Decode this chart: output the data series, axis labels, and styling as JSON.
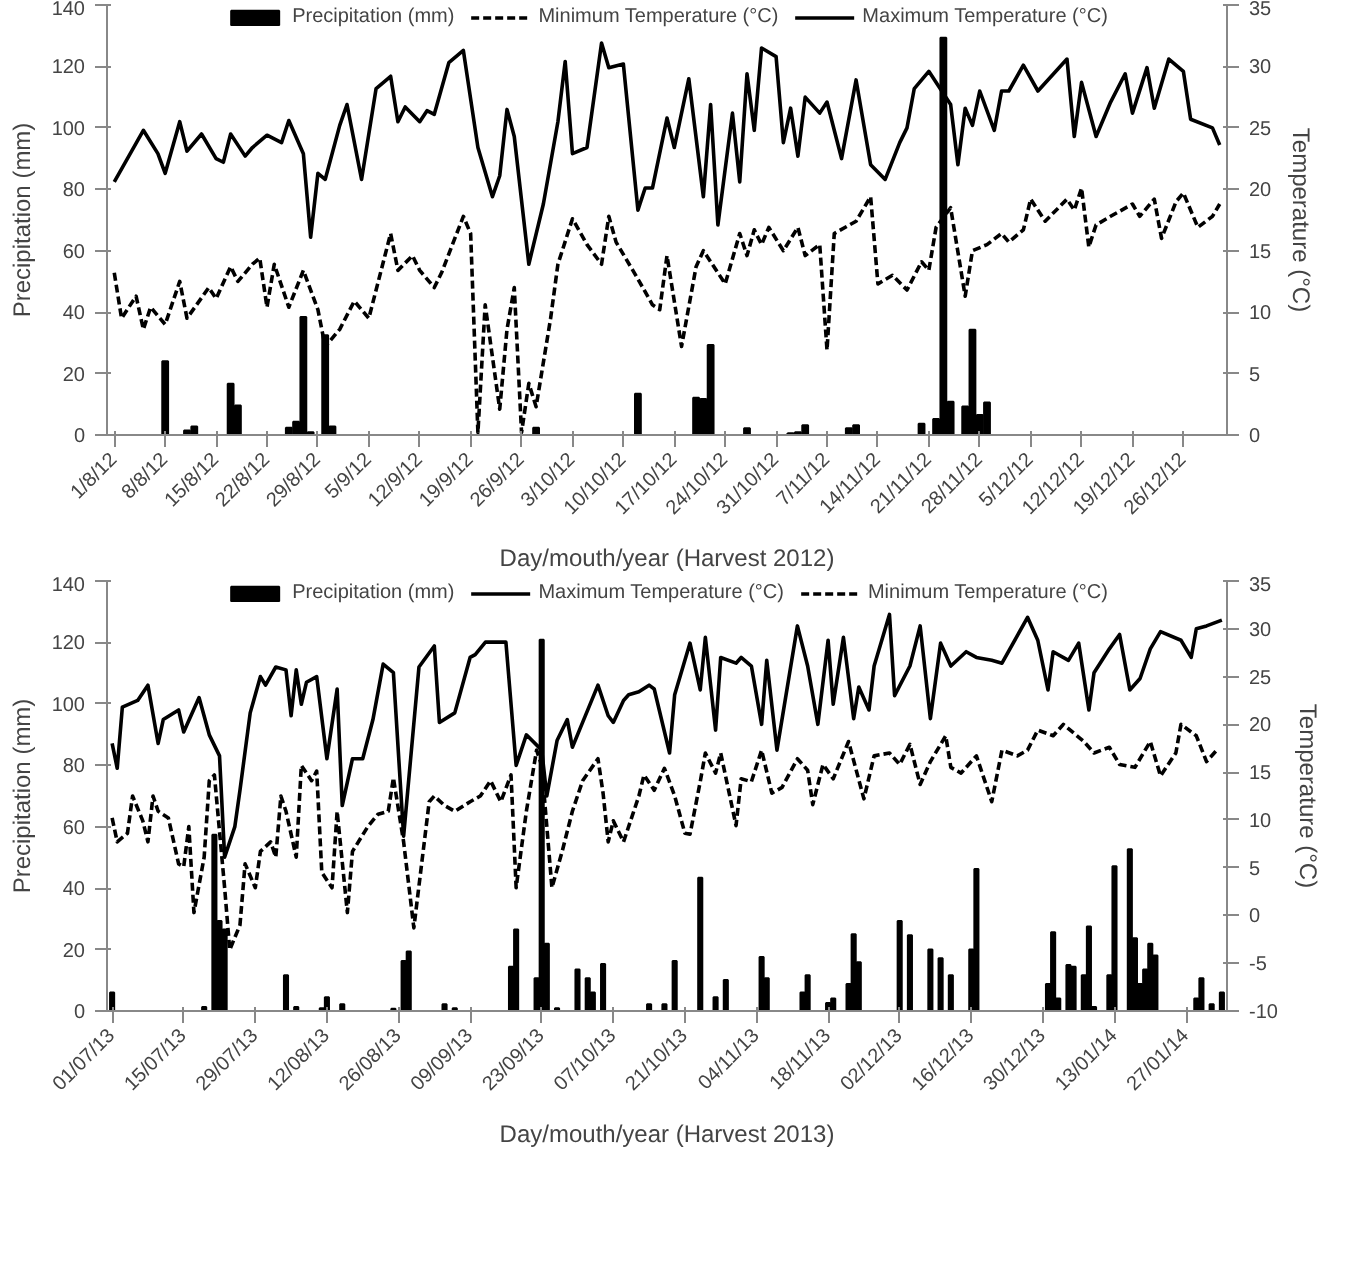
{
  "chart_data": [
    {
      "type": "line",
      "xlabel": "Day/mouth/year (Harvest 2012)",
      "ylabel": "Precipitation (mm)",
      "y2label": "Temperature (°C)",
      "legend": "top",
      "grid": false,
      "xlim": [
        "2012-07-31",
        "2013-01-01"
      ],
      "ylim": [
        0,
        140
      ],
      "yticks": [
        0,
        20,
        40,
        60,
        80,
        100,
        120,
        140
      ],
      "y2lim": [
        0,
        35
      ],
      "y2ticks": [
        0,
        5,
        10,
        15,
        20,
        25,
        30,
        35
      ],
      "xticks": [
        {
          "value": "2012-08-01",
          "label": "1/8/12"
        },
        {
          "value": "2012-08-08",
          "label": "8/8/12"
        },
        {
          "value": "2012-08-15",
          "label": "15/8/12"
        },
        {
          "value": "2012-08-22",
          "label": "22/8/12"
        },
        {
          "value": "2012-08-29",
          "label": "29/8/12"
        },
        {
          "value": "2012-09-05",
          "label": "5/9/12"
        },
        {
          "value": "2012-09-12",
          "label": "12/9/12"
        },
        {
          "value": "2012-09-19",
          "label": "19/9/12"
        },
        {
          "value": "2012-09-26",
          "label": "26/9/12"
        },
        {
          "value": "2012-10-03",
          "label": "3/10/12"
        },
        {
          "value": "2012-10-10",
          "label": "10/10/12"
        },
        {
          "value": "2012-10-17",
          "label": "17/10/12"
        },
        {
          "value": "2012-10-24",
          "label": "24/10/12"
        },
        {
          "value": "2012-10-31",
          "label": "31/10/12"
        },
        {
          "value": "2012-11-07",
          "label": "7/11/12"
        },
        {
          "value": "2012-11-14",
          "label": "14/11/12"
        },
        {
          "value": "2012-11-21",
          "label": "21/11/12"
        },
        {
          "value": "2012-11-28",
          "label": "28/11/12"
        },
        {
          "value": "2012-12-05",
          "label": "5/12/12"
        },
        {
          "value": "2012-12-12",
          "label": "12/12/12"
        },
        {
          "value": "2012-12-19",
          "label": "19/12/12"
        },
        {
          "value": "2012-12-26",
          "label": "26/12/12"
        }
      ],
      "series": [
        {
          "name": "Precipitation (mm)",
          "type": "bar",
          "color": "#000000",
          "x": [
            "2012-08-08",
            "2012-08-11",
            "2012-08-12",
            "2012-08-17",
            "2012-08-18",
            "2012-08-25",
            "2012-08-26",
            "2012-08-27",
            "2012-08-28",
            "2012-08-30",
            "2012-08-31",
            "2012-09-28",
            "2012-10-12",
            "2012-10-20",
            "2012-10-21",
            "2012-10-22",
            "2012-10-27",
            "2012-11-02",
            "2012-11-03",
            "2012-11-04",
            "2012-11-10",
            "2012-11-11",
            "2012-11-20",
            "2012-11-22",
            "2012-11-23",
            "2012-11-24",
            "2012-11-26",
            "2012-11-27",
            "2012-11-28",
            "2012-11-29"
          ],
          "values": [
            24,
            1.5,
            2.8,
            16.7,
            9.6,
            2.4,
            4.3,
            38.4,
            0.9,
            32.5,
            2.8,
            2.4,
            13.4,
            12.1,
            11.7,
            29.3,
            2.2,
            0.6,
            0.9,
            3.2,
            2.2,
            3.2,
            3.7,
            5.2,
            129.3,
            10.8,
            9.3,
            34.3,
            6.5,
            10.6
          ]
        },
        {
          "name": "Minimum Temperature (°C)",
          "axis": "y2",
          "line_style": "dashed",
          "color": "#000000",
          "x": [
            "2012-08-01",
            "2012-08-02",
            "2012-08-04",
            "2012-08-05",
            "2012-08-06",
            "2012-08-08",
            "2012-08-10",
            "2012-08-11",
            "2012-08-14",
            "2012-08-15",
            "2012-08-17",
            "2012-08-18",
            "2012-08-20",
            "2012-08-21",
            "2012-08-22",
            "2012-08-23",
            "2012-08-25",
            "2012-08-27",
            "2012-08-29",
            "2012-08-30",
            "2012-09-01",
            "2012-09-03",
            "2012-09-05",
            "2012-09-08",
            "2012-09-09",
            "2012-09-11",
            "2012-09-12",
            "2012-09-14",
            "2012-09-15",
            "2012-09-18",
            "2012-09-19",
            "2012-09-20",
            "2012-09-21",
            "2012-09-23",
            "2012-09-24",
            "2012-09-25",
            "2012-09-26",
            "2012-09-27",
            "2012-09-28",
            "2012-09-30",
            "2012-10-01",
            "2012-10-03",
            "2012-10-05",
            "2012-10-07",
            "2012-10-08",
            "2012-10-09",
            "2012-10-12",
            "2012-10-14",
            "2012-10-15",
            "2012-10-16",
            "2012-10-18",
            "2012-10-20",
            "2012-10-21",
            "2012-10-23",
            "2012-10-24",
            "2012-10-26",
            "2012-10-27",
            "2012-10-28",
            "2012-10-29",
            "2012-10-30",
            "2012-11-01",
            "2012-11-03",
            "2012-11-04",
            "2012-11-06",
            "2012-11-07",
            "2012-11-08",
            "2012-11-11",
            "2012-11-13",
            "2012-11-14",
            "2012-11-16",
            "2012-11-18",
            "2012-11-20",
            "2012-11-21",
            "2012-11-22",
            "2012-11-24",
            "2012-11-26",
            "2012-11-27",
            "2012-11-29",
            "2012-12-01",
            "2012-12-02",
            "2012-12-04",
            "2012-12-05",
            "2012-12-07",
            "2012-12-10",
            "2012-12-11",
            "2012-12-12",
            "2012-12-13",
            "2012-12-14",
            "2012-12-16",
            "2012-12-19",
            "2012-12-20",
            "2012-12-22",
            "2012-12-23",
            "2012-12-25",
            "2012-12-26",
            "2012-12-28",
            "2012-12-30",
            "2012-12-31"
          ],
          "values": [
            13.2,
            9.5,
            11.3,
            8.6,
            10.4,
            9.0,
            12.5,
            9.5,
            12.0,
            11.1,
            13.7,
            12.5,
            13.9,
            14.4,
            10.4,
            13.9,
            10.4,
            13.4,
            10.2,
            7.2,
            8.6,
            10.9,
            9.5,
            16.4,
            13.4,
            14.6,
            13.4,
            12.0,
            13.2,
            17.8,
            16.4,
            0.2,
            10.6,
            2.1,
            8.6,
            12.0,
            0.2,
            4.2,
            2.3,
            9.5,
            13.9,
            17.6,
            15.5,
            13.9,
            17.8,
            15.7,
            12.7,
            10.6,
            10.2,
            14.6,
            7.2,
            13.7,
            15.0,
            13.2,
            12.3,
            16.4,
            14.6,
            16.7,
            15.5,
            16.9,
            15.0,
            16.9,
            14.6,
            15.5,
            6.9,
            16.4,
            17.4,
            19.4,
            12.3,
            13.0,
            11.8,
            14.1,
            13.4,
            16.9,
            18.5,
            11.3,
            15.0,
            15.5,
            16.4,
            15.7,
            16.7,
            19.2,
            17.4,
            19.2,
            18.3,
            20.1,
            15.3,
            17.1,
            17.8,
            18.8,
            17.8,
            19.2,
            16.0,
            19.0,
            19.7,
            16.9,
            17.8,
            18.8
          ]
        },
        {
          "name": "Maximum Temperature (°C)",
          "axis": "y2",
          "line_style": "solid",
          "color": "#000000",
          "x": [
            "2012-08-01",
            "2012-08-05",
            "2012-08-07",
            "2012-08-08",
            "2012-08-10",
            "2012-08-11",
            "2012-08-13",
            "2012-08-15",
            "2012-08-16",
            "2012-08-17",
            "2012-08-19",
            "2012-08-20",
            "2012-08-22",
            "2012-08-24",
            "2012-08-25",
            "2012-08-27",
            "2012-08-28",
            "2012-08-29",
            "2012-08-30",
            "2012-09-01",
            "2012-09-02",
            "2012-09-04",
            "2012-09-06",
            "2012-09-08",
            "2012-09-09",
            "2012-09-10",
            "2012-09-12",
            "2012-09-13",
            "2012-09-14",
            "2012-09-16",
            "2012-09-18",
            "2012-09-20",
            "2012-09-22",
            "2012-09-23",
            "2012-09-24",
            "2012-09-25",
            "2012-09-27",
            "2012-09-29",
            "2012-10-01",
            "2012-10-02",
            "2012-10-03",
            "2012-10-05",
            "2012-10-07",
            "2012-10-08",
            "2012-10-10",
            "2012-10-12",
            "2012-10-13",
            "2012-10-14",
            "2012-10-16",
            "2012-10-17",
            "2012-10-19",
            "2012-10-21",
            "2012-10-22",
            "2012-10-23",
            "2012-10-25",
            "2012-10-26",
            "2012-10-27",
            "2012-10-28",
            "2012-10-29",
            "2012-10-31",
            "2012-11-01",
            "2012-11-02",
            "2012-11-03",
            "2012-11-04",
            "2012-11-06",
            "2012-11-07",
            "2012-11-09",
            "2012-11-11",
            "2012-11-13",
            "2012-11-15",
            "2012-11-17",
            "2012-11-18",
            "2012-11-19",
            "2012-11-21",
            "2012-11-23",
            "2012-11-24",
            "2012-11-25",
            "2012-11-26",
            "2012-11-27",
            "2012-11-28",
            "2012-11-30",
            "2012-12-01",
            "2012-12-02",
            "2012-12-04",
            "2012-12-06",
            "2012-12-10",
            "2012-12-11",
            "2012-12-12",
            "2012-12-14",
            "2012-12-16",
            "2012-12-18",
            "2012-12-19",
            "2012-12-21",
            "2012-12-22",
            "2012-12-24",
            "2012-12-26",
            "2012-12-27",
            "2012-12-30",
            "2012-12-31"
          ],
          "values": [
            20.6,
            24.8,
            22.9,
            21.3,
            25.5,
            23.1,
            24.5,
            22.5,
            22.2,
            24.5,
            22.7,
            23.4,
            24.4,
            23.8,
            25.6,
            22.9,
            16.1,
            21.3,
            20.8,
            25.2,
            26.9,
            20.8,
            28.2,
            29.2,
            25.5,
            26.7,
            25.5,
            26.4,
            26.1,
            30.3,
            31.3,
            23.4,
            19.4,
            21.1,
            26.5,
            24.3,
            13.9,
            18.8,
            25.5,
            30.4,
            22.9,
            23.4,
            31.9,
            29.9,
            30.2,
            18.3,
            20.1,
            20.1,
            25.8,
            23.4,
            29.0,
            19.4,
            26.9,
            17.1,
            26.2,
            20.6,
            29.4,
            24.8,
            31.5,
            30.8,
            23.8,
            26.6,
            22.7,
            27.5,
            26.2,
            27.1,
            22.5,
            28.9,
            22.0,
            20.8,
            23.8,
            25.0,
            28.2,
            29.6,
            27.8,
            26.9,
            22.0,
            26.6,
            25.2,
            28.0,
            24.8,
            28.0,
            28.0,
            30.1,
            28.0,
            30.6,
            24.3,
            28.7,
            24.3,
            27.1,
            29.4,
            26.2,
            29.9,
            26.6,
            30.6,
            29.6,
            25.7,
            25.0,
            23.6
          ]
        }
      ]
    },
    {
      "type": "line",
      "xlabel": "Day/mouth/year (Harvest 2013)",
      "ylabel": "Precipitation (mm)",
      "y2label": "Temperature (°C)",
      "legend": "top",
      "grid": false,
      "xlim": [
        "2013-06-30",
        "2014-02-04"
      ],
      "ylim": [
        0,
        140
      ],
      "yticks": [
        0,
        20,
        40,
        60,
        80,
        100,
        120,
        140
      ],
      "y2lim": [
        -10,
        35
      ],
      "y2ticks": [
        -10,
        -5,
        0,
        5,
        10,
        15,
        20,
        25,
        30,
        35
      ],
      "xticks": [
        {
          "value": "2013-07-01",
          "label": "01/07/13"
        },
        {
          "value": "2013-07-15",
          "label": "15/07/13"
        },
        {
          "value": "2013-07-29",
          "label": "29/07/13"
        },
        {
          "value": "2013-08-12",
          "label": "12/08/13"
        },
        {
          "value": "2013-08-26",
          "label": "26/08/13"
        },
        {
          "value": "2013-09-09",
          "label": "09/09/13"
        },
        {
          "value": "2013-09-23",
          "label": "23/09/13"
        },
        {
          "value": "2013-10-07",
          "label": "07/10/13"
        },
        {
          "value": "2013-10-21",
          "label": "21/10/13"
        },
        {
          "value": "2013-11-04",
          "label": "04/11/13"
        },
        {
          "value": "2013-11-18",
          "label": "18/11/13"
        },
        {
          "value": "2013-12-02",
          "label": "02/12/13"
        },
        {
          "value": "2013-12-16",
          "label": "16/12/13"
        },
        {
          "value": "2013-12-30",
          "label": "30/12/13"
        },
        {
          "value": "2014-01-13",
          "label": "13/01/14"
        },
        {
          "value": "2014-01-27",
          "label": "27/01/14"
        }
      ],
      "series": [
        {
          "name": "Precipitation (mm)",
          "type": "bar",
          "color": "#000000",
          "x": [
            "2013-07-01",
            "2013-07-19",
            "2013-07-21",
            "2013-07-22",
            "2013-07-23",
            "2013-08-04",
            "2013-08-06",
            "2013-08-11",
            "2013-08-12",
            "2013-08-15",
            "2013-08-25",
            "2013-08-27",
            "2013-08-28",
            "2013-09-04",
            "2013-09-06",
            "2013-09-17",
            "2013-09-18",
            "2013-09-22",
            "2013-09-23",
            "2013-09-24",
            "2013-09-26",
            "2013-09-30",
            "2013-10-02",
            "2013-10-03",
            "2013-10-05",
            "2013-10-14",
            "2013-10-17",
            "2013-10-19",
            "2013-10-24",
            "2013-10-27",
            "2013-10-29",
            "2013-11-05",
            "2013-11-06",
            "2013-11-13",
            "2013-11-14",
            "2013-11-18",
            "2013-11-19",
            "2013-11-22",
            "2013-11-23",
            "2013-11-24",
            "2013-12-02",
            "2013-12-04",
            "2013-12-08",
            "2013-12-10",
            "2013-12-12",
            "2013-12-16",
            "2013-12-17",
            "2013-12-31",
            "2014-01-01",
            "2014-01-02",
            "2014-01-04",
            "2014-01-05",
            "2014-01-07",
            "2014-01-08",
            "2014-01-09",
            "2014-01-12",
            "2014-01-13",
            "2014-01-16",
            "2014-01-17",
            "2014-01-18",
            "2014-01-19",
            "2014-01-20",
            "2014-01-21",
            "2014-01-29",
            "2014-01-30",
            "2014-02-01",
            "2014-02-03"
          ],
          "values": [
            6.0,
            1.3,
            57.4,
            29.3,
            26.5,
            11.6,
            1.3,
            0.9,
            4.5,
            2.2,
            0.7,
            16.3,
            19.4,
            2.2,
            0.9,
            14.4,
            26.5,
            10.7,
            120.9,
            21.9,
            0.9,
            13.5,
            10.7,
            6.0,
            15.3,
            2.2,
            2.2,
            16.3,
            43.4,
            4.5,
            10.1,
            17.6,
            10.7,
            6.0,
            11.6,
            2.6,
            4.1,
            8.8,
            25.0,
            15.9,
            29.3,
            24.7,
            20.0,
            17.2,
            11.6,
            20.0,
            46.2,
            8.8,
            25.6,
            4.1,
            15.0,
            14.4,
            11.6,
            27.5,
            1.3,
            11.6,
            47.1,
            52.7,
            23.7,
            8.8,
            13.5,
            21.9,
            18.1,
            4.1,
            10.7,
            2.2,
            6.0
          ]
        },
        {
          "name": "Maximum Temperature (°C)",
          "axis": "y2",
          "line_style": "solid",
          "color": "#000000",
          "x": [
            "2013-07-01",
            "2013-07-02",
            "2013-07-03",
            "2013-07-06",
            "2013-07-08",
            "2013-07-10",
            "2013-07-11",
            "2013-07-14",
            "2013-07-15",
            "2013-07-18",
            "2013-07-20",
            "2013-07-22",
            "2013-07-23",
            "2013-07-25",
            "2013-07-26",
            "2013-07-28",
            "2013-07-30",
            "2013-07-31",
            "2013-08-02",
            "2013-08-04",
            "2013-08-05",
            "2013-08-06",
            "2013-08-07",
            "2013-08-08",
            "2013-08-10",
            "2013-08-12",
            "2013-08-14",
            "2013-08-15",
            "2013-08-17",
            "2013-08-19",
            "2013-08-21",
            "2013-08-23",
            "2013-08-25",
            "2013-08-27",
            "2013-08-30",
            "2013-09-02",
            "2013-09-03",
            "2013-09-06",
            "2013-09-09",
            "2013-09-10",
            "2013-09-12",
            "2013-09-13",
            "2013-09-16",
            "2013-09-18",
            "2013-09-20",
            "2013-09-23",
            "2013-09-24",
            "2013-09-26",
            "2013-09-28",
            "2013-09-29",
            "2013-10-01",
            "2013-10-04",
            "2013-10-06",
            "2013-10-07",
            "2013-10-09",
            "2013-10-10",
            "2013-10-12",
            "2013-10-14",
            "2013-10-15",
            "2013-10-18",
            "2013-10-19",
            "2013-10-22",
            "2013-10-24",
            "2013-10-25",
            "2013-10-27",
            "2013-10-28",
            "2013-10-31",
            "2013-11-01",
            "2013-11-03",
            "2013-11-05",
            "2013-11-06",
            "2013-11-08",
            "2013-11-12",
            "2013-11-14",
            "2013-11-16",
            "2013-11-18",
            "2013-11-19",
            "2013-11-21",
            "2013-11-23",
            "2013-11-24",
            "2013-11-26",
            "2013-11-27",
            "2013-11-30",
            "2013-12-01",
            "2013-12-04",
            "2013-12-06",
            "2013-12-08",
            "2013-12-10",
            "2013-12-12",
            "2013-12-15",
            "2013-12-17",
            "2013-12-20",
            "2013-12-22",
            "2013-12-27",
            "2013-12-29",
            "2013-12-31",
            "2014-01-01",
            "2014-01-04",
            "2014-01-06",
            "2014-01-08",
            "2014-01-09",
            "2014-01-12",
            "2014-01-14",
            "2014-01-16",
            "2014-01-18",
            "2014-01-20",
            "2014-01-22",
            "2014-01-26",
            "2014-01-28",
            "2014-01-29",
            "2014-01-31",
            "2014-02-03"
          ],
          "values": [
            18.0,
            15.4,
            21.8,
            22.5,
            24.1,
            18.0,
            20.5,
            21.5,
            19.2,
            22.8,
            18.9,
            16.7,
            6.1,
            9.3,
            13.1,
            21.2,
            25.0,
            24.1,
            26.0,
            25.7,
            20.9,
            25.7,
            22.1,
            24.4,
            25.0,
            16.4,
            23.7,
            11.5,
            16.4,
            16.4,
            20.5,
            26.3,
            25.4,
            8.3,
            26.0,
            28.2,
            20.2,
            21.2,
            27.0,
            27.3,
            28.6,
            28.6,
            28.6,
            15.7,
            18.9,
            17.3,
            12.5,
            18.3,
            20.5,
            17.6,
            20.2,
            24.1,
            20.9,
            20.2,
            22.5,
            23.1,
            23.4,
            24.1,
            23.7,
            17.0,
            23.1,
            28.5,
            23.6,
            29.1,
            19.4,
            27.0,
            26.4,
            27.0,
            26.1,
            20.0,
            26.7,
            17.3,
            30.3,
            26.1,
            20.0,
            28.8,
            22.1,
            29.1,
            20.6,
            23.9,
            21.5,
            26.1,
            31.5,
            23.0,
            26.1,
            30.3,
            20.6,
            28.5,
            26.1,
            27.6,
            27.0,
            26.7,
            26.4,
            31.2,
            28.8,
            23.6,
            27.6,
            26.7,
            28.5,
            21.5,
            25.4,
            27.9,
            29.4,
            23.6,
            24.8,
            27.9,
            29.7,
            28.8,
            27.0,
            30.0,
            30.3,
            30.9
          ]
        },
        {
          "name": "Minimum Temperature (°C)",
          "axis": "y2",
          "line_style": "dashed",
          "color": "#000000",
          "x": [
            "2013-07-01",
            "2013-07-02",
            "2013-07-04",
            "2013-07-05",
            "2013-07-07",
            "2013-07-08",
            "2013-07-09",
            "2013-07-10",
            "2013-07-12",
            "2013-07-14",
            "2013-07-15",
            "2013-07-16",
            "2013-07-17",
            "2013-07-19",
            "2013-07-20",
            "2013-07-21",
            "2013-07-23",
            "2013-07-24",
            "2013-07-26",
            "2013-07-27",
            "2013-07-29",
            "2013-07-30",
            "2013-08-01",
            "2013-08-02",
            "2013-08-03",
            "2013-08-04",
            "2013-08-06",
            "2013-08-07",
            "2013-08-09",
            "2013-08-10",
            "2013-08-11",
            "2013-08-13",
            "2013-08-14",
            "2013-08-16",
            "2013-08-17",
            "2013-08-20",
            "2013-08-22",
            "2013-08-24",
            "2013-08-25",
            "2013-08-27",
            "2013-08-29",
            "2013-09-01",
            "2013-09-02",
            "2013-09-04",
            "2013-09-06",
            "2013-09-09",
            "2013-09-11",
            "2013-09-13",
            "2013-09-15",
            "2013-09-17",
            "2013-09-18",
            "2013-09-20",
            "2013-09-22",
            "2013-09-23",
            "2013-09-25",
            "2013-09-27",
            "2013-09-29",
            "2013-10-01",
            "2013-10-04",
            "2013-10-05",
            "2013-10-06",
            "2013-10-07",
            "2013-10-09",
            "2013-10-12",
            "2013-10-13",
            "2013-10-15",
            "2013-10-17",
            "2013-10-19",
            "2013-10-21",
            "2013-10-22",
            "2013-10-24",
            "2013-10-25",
            "2013-10-27",
            "2013-10-28",
            "2013-10-31",
            "2013-11-01",
            "2013-11-03",
            "2013-11-05",
            "2013-11-07",
            "2013-11-09",
            "2013-11-12",
            "2013-11-14",
            "2013-11-15",
            "2013-11-17",
            "2013-11-19",
            "2013-11-22",
            "2013-11-25",
            "2013-11-27",
            "2013-11-30",
            "2013-12-02",
            "2013-12-04",
            "2013-12-06",
            "2013-12-08",
            "2013-12-11",
            "2013-12-12",
            "2013-12-14",
            "2013-12-17",
            "2013-12-20",
            "2013-12-22",
            "2013-12-25",
            "2013-12-27",
            "2013-12-29",
            "2014-01-01",
            "2014-01-03",
            "2014-01-07",
            "2014-01-09",
            "2014-01-12",
            "2014-01-14",
            "2014-01-17",
            "2014-01-20",
            "2014-01-22",
            "2014-01-25",
            "2014-01-26",
            "2014-01-29",
            "2014-01-31",
            "2014-02-02"
          ],
          "values": [
            10.2,
            7.7,
            8.6,
            12.5,
            9.9,
            7.7,
            12.5,
            10.9,
            10.2,
            5.4,
            5.1,
            9.3,
            0.3,
            6.1,
            14.1,
            14.7,
            2.9,
            -3.6,
            -1.0,
            5.4,
            2.9,
            6.7,
            7.7,
            6.1,
            12.5,
            10.9,
            6.1,
            15.7,
            14.1,
            15.1,
            4.5,
            2.9,
            10.9,
            0.3,
            6.7,
            9.3,
            10.6,
            10.9,
            14.4,
            7.7,
            -1.3,
            11.9,
            12.5,
            11.5,
            10.9,
            11.9,
            12.5,
            14.1,
            11.9,
            14.7,
            2.9,
            10.9,
            17.3,
            15.7,
            2.9,
            6.7,
            10.9,
            14.1,
            16.4,
            12.8,
            7.7,
            9.9,
            7.7,
            12.5,
            14.7,
            13.1,
            15.4,
            12.5,
            8.6,
            8.5,
            14.0,
            17.0,
            14.9,
            17.0,
            9.4,
            14.3,
            14.0,
            17.3,
            12.8,
            13.4,
            16.4,
            15.2,
            11.6,
            15.8,
            14.3,
            18.2,
            12.2,
            16.7,
            17.0,
            15.8,
            17.9,
            13.7,
            16.1,
            18.8,
            15.5,
            14.9,
            16.7,
            11.9,
            17.3,
            16.7,
            17.3,
            19.4,
            18.8,
            20.0,
            18.2,
            17.0,
            17.6,
            15.8,
            15.5,
            18.2,
            14.6,
            17.0,
            20.0,
            18.8,
            16.1,
            17.3
          ]
        }
      ]
    }
  ]
}
